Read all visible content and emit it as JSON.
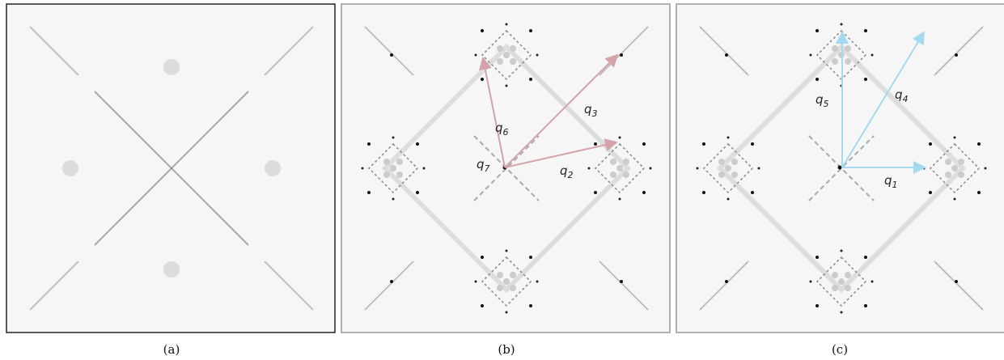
{
  "panels": [
    {
      "caption": "(a)"
    },
    {
      "caption": "(b)",
      "vectors": [
        {
          "base": "q",
          "sub": "6"
        },
        {
          "base": "q",
          "sub": "3"
        },
        {
          "base": "q",
          "sub": "2"
        },
        {
          "base": "q",
          "sub": "7"
        }
      ]
    },
    {
      "caption": "(c)",
      "vectors": [
        {
          "base": "q",
          "sub": "5"
        },
        {
          "base": "q",
          "sub": "4"
        },
        {
          "base": "q",
          "sub": "1"
        }
      ]
    }
  ]
}
